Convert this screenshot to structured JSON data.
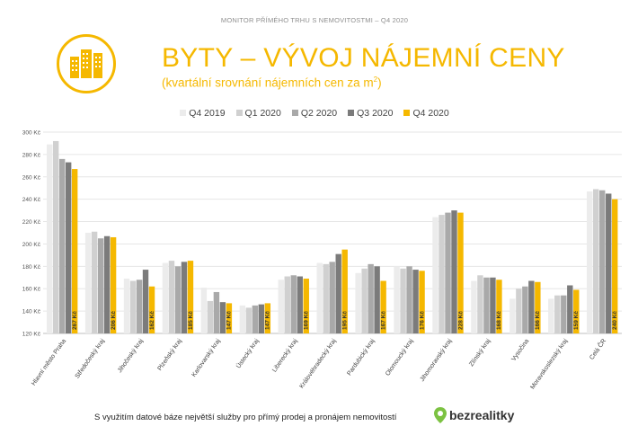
{
  "header": {
    "caption": "MONITOR PŘÍMÉHO TRHU S NEMOVITOSTMI – Q4 2020",
    "title": "BYTY – VÝVOJ NÁJEMNÍ CENY",
    "subtitle_main": "(kvartální srovnání nájemních cen za m",
    "subtitle_sup": "2",
    "subtitle_end": ")",
    "logo_icon": "apartment-buildings-icon"
  },
  "colors": {
    "accent": "#f5b800",
    "series": [
      "#ececec",
      "#d0d0d0",
      "#a9a9a9",
      "#7b7b7b",
      "#f5b800"
    ]
  },
  "chart_data": {
    "type": "bar",
    "categories": [
      "Hlavní město Praha",
      "Středočeský kraj",
      "Jihočeský kraj",
      "Plzeňský kraj",
      "Karlovarský kraj",
      "Ústecký kraj",
      "Liberecký kraj",
      "Královéhradecký kraj",
      "Pardubický kraj",
      "Olomoucký kraj",
      "Jihomoravský kraj",
      "Zlínský kraj",
      "Vysočina",
      "Moravskoslezský kraj",
      "Celá ČR"
    ],
    "series": [
      {
        "name": "Q4 2019",
        "values": [
          289,
          210,
          169,
          183,
          161,
          145,
          168,
          183,
          174,
          180,
          224,
          167,
          151,
          151,
          247
        ]
      },
      {
        "name": "Q1 2020",
        "values": [
          292,
          211,
          167,
          185,
          149,
          143,
          171,
          182,
          178,
          178,
          226,
          172,
          160,
          154,
          249
        ]
      },
      {
        "name": "Q2 2020",
        "values": [
          276,
          205,
          168,
          180,
          157,
          145,
          172,
          184,
          182,
          180,
          228,
          170,
          162,
          154,
          248
        ]
      },
      {
        "name": "Q3 2020",
        "values": [
          273,
          207,
          177,
          184,
          148,
          146,
          171,
          191,
          180,
          177,
          230,
          170,
          167,
          163,
          245
        ]
      },
      {
        "name": "Q4 2020",
        "values": [
          267,
          206,
          162,
          185,
          147,
          147,
          169,
          195,
          167,
          176,
          228,
          168,
          166,
          159,
          240
        ]
      }
    ],
    "data_labels": [
      "267 Kč",
      "206 Kč",
      "162 Kč",
      "185 Kč",
      "147 Kč",
      "147 Kč",
      "169 Kč",
      "195 Kč",
      "167 Kč",
      "176 Kč",
      "228 Kč",
      "168 Kč",
      "166 Kč",
      "159 Kč",
      "240 Kč"
    ],
    "y_ticks": [
      120,
      140,
      160,
      180,
      200,
      220,
      240,
      260,
      280,
      300
    ],
    "y_tick_suffix": " Kč",
    "ylim": [
      120,
      300
    ],
    "grid": true,
    "legend_position": "top-center",
    "title": "BYTY – VÝVOJ NÁJEMNÍ CENY"
  },
  "footer": {
    "text": "S využitím datové báze největší služby pro přímý prodej a pronájem nemovitostí",
    "brand": "bezrealitky",
    "brand_icon": "location-pin-icon"
  }
}
